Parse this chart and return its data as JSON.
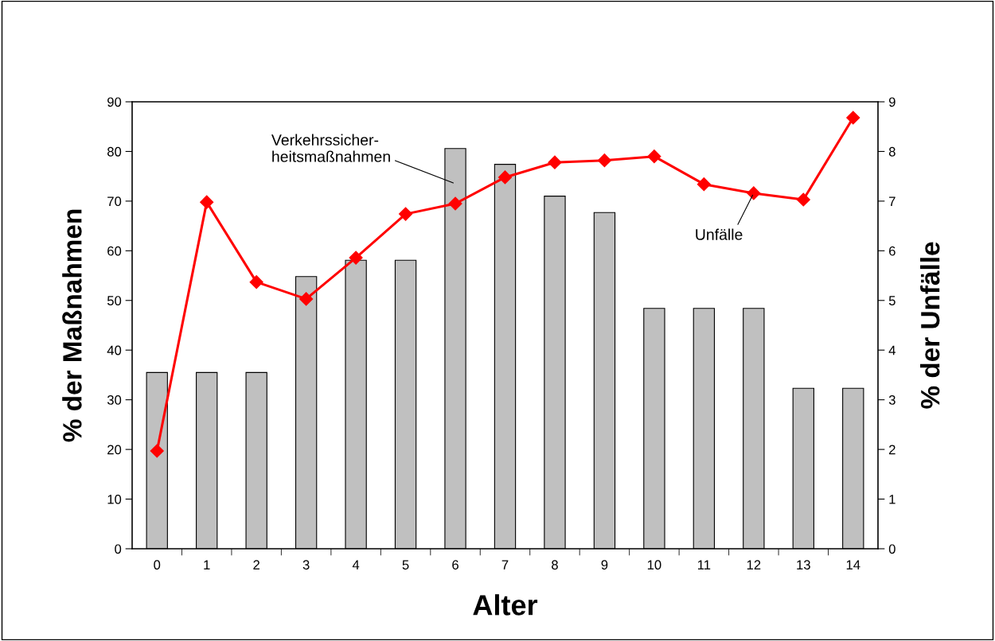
{
  "chart_data": {
    "type": "bar",
    "xlabel": "Alter",
    "ylabel": "% der Maßnahmen",
    "y2label": "% der Unfälle",
    "categories": [
      "0",
      "1",
      "2",
      "3",
      "4",
      "5",
      "6",
      "7",
      "8",
      "9",
      "10",
      "11",
      "12",
      "13",
      "14"
    ],
    "series": [
      {
        "color": "#c0c0c0",
        "values": [
          35.5,
          35.5,
          35.5,
          54.8,
          58.1,
          58.1,
          80.6,
          77.4,
          71.0,
          67.7,
          48.4,
          48.4,
          48.4,
          32.3,
          32.3
        ]
      },
      {
        "type": "line",
        "axis": "y2",
        "color": "#ff0000",
        "marker": "diamond",
        "line_style": "solid",
        "values": [
          1.97,
          6.98,
          5.37,
          5.03,
          5.86,
          6.74,
          6.95,
          7.48,
          7.78,
          7.82,
          7.9,
          7.34,
          7.16,
          7.03,
          8.68
        ]
      }
    ],
    "ylim": [
      0,
      90
    ],
    "yticks": [
      0,
      10,
      20,
      30,
      40,
      50,
      60,
      70,
      80,
      90
    ],
    "y2lim": [
      0,
      9
    ],
    "y2ticks": [
      0,
      1,
      2,
      3,
      4,
      5,
      6,
      7,
      8,
      9
    ],
    "annotations": [
      "Verkehrssicher-\nheitsmaßnahmen",
      {
        "text": "Unfälle",
        "x": "12",
        "y": 71.6
      }
    ],
    "grid": false,
    "legend": false
  }
}
